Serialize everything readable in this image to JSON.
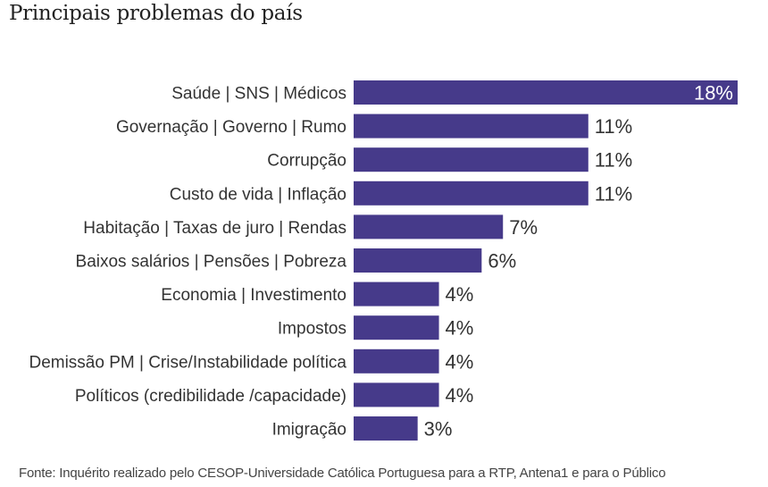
{
  "chart_data": {
    "type": "bar",
    "orientation": "horizontal",
    "title": "Principais problemas do país",
    "xlabel": "",
    "ylabel": "",
    "xlim": [
      0,
      18
    ],
    "grid": false,
    "legend": "none",
    "bar_color": "#463a8a",
    "value_suffix": "%",
    "categories": [
      "Saúde | SNS | Médicos",
      "Governação | Governo | Rumo",
      "Corrupção",
      "Custo de vida | Inflação",
      "Habitação | Taxas de juro | Rendas",
      "Baixos salários | Pensões | Pobreza",
      "Economia | Investimento",
      "Impostos",
      "Demissão PM | Crise/Instabilidade política",
      "Políticos (credibilidade /capacidade)",
      "Imigração"
    ],
    "values": [
      18,
      11,
      11,
      11,
      7,
      6,
      4,
      4,
      4,
      4,
      3
    ],
    "data_labels": [
      "18%",
      "11%",
      "11%",
      "11%",
      "7%",
      "6%",
      "4%",
      "4%",
      "4%",
      "4%",
      "3%"
    ]
  },
  "source": "Fonte: Inquérito realizado pelo CESOP-Universidade Católica Portuguesa para a RTP, Antena1 e para o Público"
}
